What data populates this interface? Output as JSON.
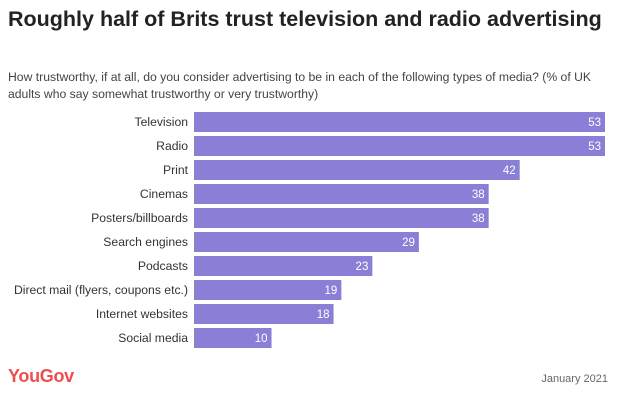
{
  "header": {
    "title": "Roughly half of Brits trust television and radio advertising",
    "subtitle": "How trustworthy, if at all, do you consider advertising to be in each of the following types of media? (% of UK adults who say somewhat trustworthy or very trustworthy)"
  },
  "footer": {
    "brand": "YouGov",
    "date": "January 2021"
  },
  "colors": {
    "bar": "#8a7fd6",
    "brand": "#f04e4e"
  },
  "chart_data": {
    "type": "bar",
    "orientation": "horizontal",
    "categories": [
      "Television",
      "Radio",
      "Print",
      "Cinemas",
      "Posters/billboards",
      "Search engines",
      "Podcasts",
      "Direct mail (flyers, coupons etc.)",
      "Internet websites",
      "Social media"
    ],
    "values": [
      53,
      53,
      42,
      38,
      38,
      29,
      23,
      19,
      18,
      10
    ],
    "xlim": [
      0,
      53
    ],
    "grid": false,
    "legend": "none",
    "data_labels": "inside-end"
  }
}
